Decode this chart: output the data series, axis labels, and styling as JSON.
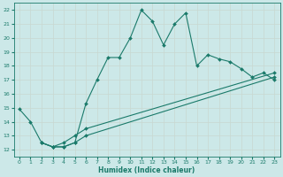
{
  "xlabel": "Humidex (Indice chaleur)",
  "bg_color": "#cce8e8",
  "grid_color": "#b0d4d4",
  "line_color": "#1a7a6a",
  "xlim": [
    -0.5,
    23.5
  ],
  "ylim": [
    11.5,
    22.5
  ],
  "xticks": [
    0,
    1,
    2,
    3,
    4,
    5,
    6,
    7,
    8,
    9,
    10,
    11,
    12,
    13,
    14,
    15,
    16,
    17,
    18,
    19,
    20,
    21,
    22,
    23
  ],
  "yticks": [
    12,
    13,
    14,
    15,
    16,
    17,
    18,
    19,
    20,
    21,
    22
  ],
  "line1_x": [
    0,
    1,
    2,
    3,
    4,
    5,
    6,
    7,
    8,
    9,
    10,
    11,
    12,
    13,
    14,
    15,
    16,
    17,
    18,
    19,
    20,
    21,
    22,
    23
  ],
  "line1_y": [
    14.9,
    14.0,
    12.5,
    12.2,
    12.2,
    12.5,
    15.3,
    17.0,
    18.6,
    18.6,
    20.0,
    22.0,
    21.2,
    19.5,
    21.0,
    21.8,
    18.0,
    18.8,
    18.5,
    18.3,
    17.8,
    17.2,
    17.5,
    17.0
  ],
  "line2_x": [
    2,
    3,
    4,
    5,
    6,
    23
  ],
  "line2_y": [
    12.5,
    12.2,
    12.2,
    12.5,
    13.0,
    17.2
  ],
  "line3_x": [
    2,
    3,
    4,
    5,
    6,
    23
  ],
  "line3_y": [
    12.5,
    12.2,
    12.5,
    13.0,
    13.5,
    17.5
  ]
}
